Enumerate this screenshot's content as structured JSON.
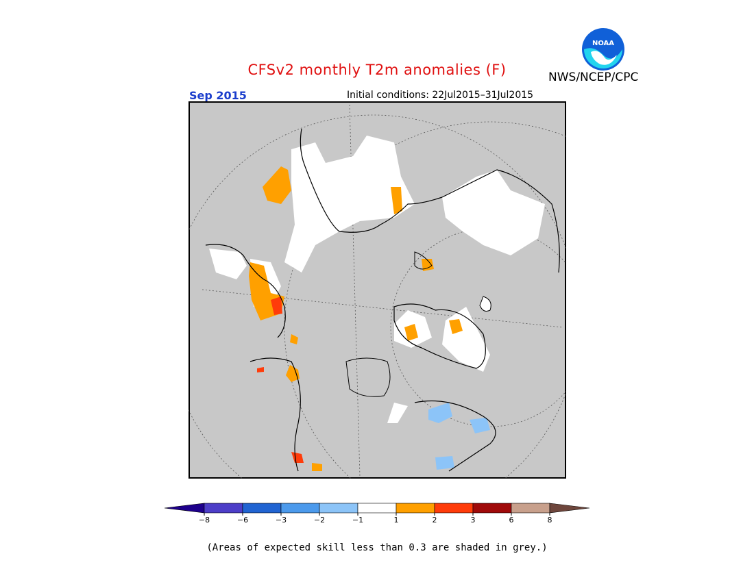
{
  "header": {
    "title": "CFSv2 monthly T2m anomalies (F)",
    "agency": "NWS/NCEP/CPC",
    "logo_text": "NOAA",
    "valid_month": "Sep 2015",
    "initial_conditions": "Initial conditions: 22Jul2015–31Jul2015"
  },
  "map": {
    "projection": "polar-stereographic (north pole)",
    "background_color": "#c8c8c8",
    "no_skill_note_color": "#c8c8c8"
  },
  "legend": {
    "tick_labels": [
      "−8",
      "−6",
      "−3",
      "−2",
      "−1",
      "1",
      "2",
      "3",
      "6",
      "8"
    ],
    "colors": [
      "#1e008c",
      "#4d3ec8",
      "#2164d2",
      "#4c9aec",
      "#8cc4f8",
      "#ffffff",
      "#ffa000",
      "#ff3c0a",
      "#a00a0a",
      "#c8a08c",
      "#6e463c"
    ],
    "tick_color": "#000000"
  },
  "footnote": "(Areas of expected skill less than 0.3 are shaded in grey.)"
}
